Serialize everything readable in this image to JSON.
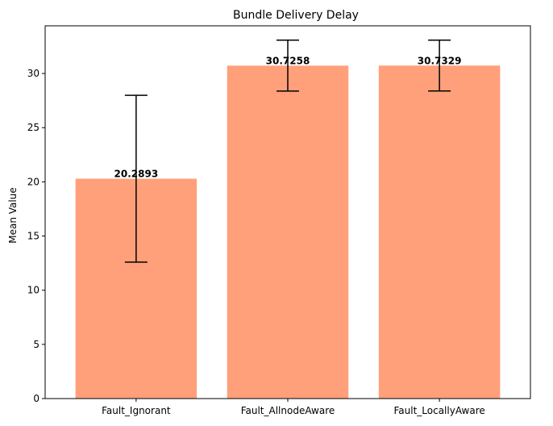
{
  "chart_data": {
    "type": "bar",
    "title": "Bundle Delivery Delay",
    "xlabel": "",
    "ylabel": "Mean Value",
    "categories": [
      "Fault_Ignorant",
      "Fault_AllnodeAware",
      "Fault_LocallyAware"
    ],
    "values": [
      20.2893,
      30.7258,
      30.7329
    ],
    "value_labels": [
      "20.2893",
      "30.7258",
      "30.7329"
    ],
    "errors": [
      7.7,
      2.35,
      2.35
    ],
    "ylim": [
      0,
      34.4
    ],
    "yticks": [
      0,
      5,
      10,
      15,
      20,
      25,
      30
    ],
    "bar_color": "#ffa07a",
    "error_color": "#000000",
    "grid": false
  }
}
